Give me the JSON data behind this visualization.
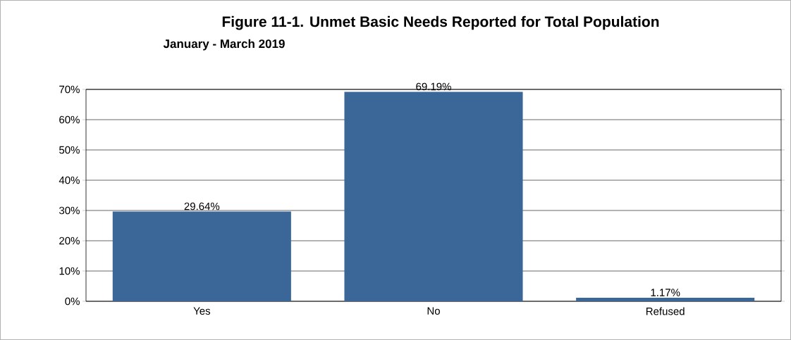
{
  "chart_data": {
    "type": "bar",
    "title": "Figure 11-1. Unmet Basic Needs Reported for Total Population",
    "subtitle": "January - March 2019",
    "categories": [
      "Yes",
      "No",
      "Refused"
    ],
    "values": [
      29.64,
      69.19,
      1.17
    ],
    "value_labels": [
      "29.64%",
      "69.19%",
      "1.17%"
    ],
    "color": "#3a6698",
    "ylim": [
      0,
      70
    ],
    "yticks": [
      {
        "value": 0,
        "label": "0%"
      },
      {
        "value": 10,
        "label": "10%"
      },
      {
        "value": 20,
        "label": "20%"
      },
      {
        "value": 30,
        "label": "30%"
      },
      {
        "value": 40,
        "label": "40%"
      },
      {
        "value": 50,
        "label": "50%"
      },
      {
        "value": 60,
        "label": "60%"
      },
      {
        "value": 70,
        "label": "70%"
      }
    ],
    "grid": "y"
  }
}
